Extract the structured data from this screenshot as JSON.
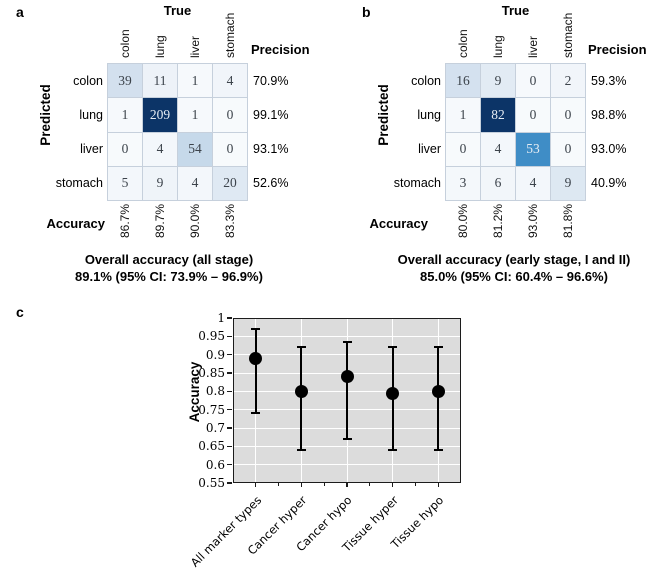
{
  "chart_data": [
    {
      "type": "heatmap",
      "panel_label": "a",
      "x_axis_title": "True",
      "y_axis_title": "Predicted",
      "categories": [
        "colon",
        "lung",
        "liver",
        "stomach"
      ],
      "matrix": [
        [
          39,
          11,
          1,
          4
        ],
        [
          1,
          209,
          1,
          0
        ],
        [
          0,
          4,
          54,
          0
        ],
        [
          5,
          9,
          4,
          20
        ]
      ],
      "precision_label": "Precision",
      "precision": [
        "70.9%",
        "99.1%",
        "93.1%",
        "52.6%"
      ],
      "accuracy_label": "Accuracy",
      "accuracy": [
        "86.7%",
        "89.7%",
        "90.0%",
        "83.3%"
      ],
      "caption_line1": "Overall accuracy (all stage)",
      "caption_line2": "89.1% (95% CI: 73.9% – 96.9%)",
      "colormap": "Blues",
      "cell_bg": [
        [
          "#d3e0ee",
          "#edf2f8",
          "#f6f9fc",
          "#f1f5fa"
        ],
        [
          "#f6f9fc",
          "#0c3467",
          "#f6f9fc",
          "#f7fafc"
        ],
        [
          "#f7fafc",
          "#f3f7fb",
          "#c6d9ea",
          "#f7fafc"
        ],
        [
          "#f3f7fb",
          "#eff4f9",
          "#f3f7fb",
          "#dfe9f3"
        ]
      ]
    },
    {
      "type": "heatmap",
      "panel_label": "b",
      "x_axis_title": "True",
      "y_axis_title": "Predicted",
      "categories": [
        "colon",
        "lung",
        "liver",
        "stomach"
      ],
      "matrix": [
        [
          16,
          9,
          0,
          2
        ],
        [
          1,
          82,
          0,
          0
        ],
        [
          0,
          4,
          53,
          0
        ],
        [
          3,
          6,
          4,
          9
        ]
      ],
      "precision_label": "Precision",
      "precision": [
        "59.3%",
        "98.8%",
        "93.0%",
        "40.9%"
      ],
      "accuracy_label": "Accuracy",
      "accuracy": [
        "80.0%",
        "81.2%",
        "93.0%",
        "81.8%"
      ],
      "caption_line1": "Overall accuracy (early stage, I and II)",
      "caption_line2": "85.0% (95% CI: 60.4% – 96.6%)",
      "colormap": "Blues",
      "cell_bg": [
        [
          "#d4e1ef",
          "#e2ebf4",
          "#f6f9fc",
          "#f1f5fa"
        ],
        [
          "#f6f9fc",
          "#0c3467",
          "#f7fafc",
          "#f7fafc"
        ],
        [
          "#f7fafc",
          "#f3f7fb",
          "#3f8dc6",
          "#f7fafc"
        ],
        [
          "#f4f8fb",
          "#f2f6fa",
          "#f3f7fb",
          "#dde8f2"
        ]
      ]
    },
    {
      "type": "scatter",
      "panel_label": "c",
      "ylabel": "Accuracy",
      "ylim": [
        0.55,
        1.0
      ],
      "ytick_step": 0.05,
      "ytick_labels": [
        "1",
        "0.95",
        "0.9",
        "0.85",
        "0.8",
        "0.75",
        "0.7",
        "0.65",
        "0.6",
        "0.55"
      ],
      "categories": [
        "All marker types",
        "Cancer hyper",
        "Cancer hypo",
        "Tissue hyper",
        "Tissue hypo"
      ],
      "values": [
        0.89,
        0.8,
        0.84,
        0.795,
        0.8
      ],
      "ci_low": [
        0.74,
        0.64,
        0.67,
        0.64,
        0.64
      ],
      "ci_high": [
        0.97,
        0.92,
        0.935,
        0.92,
        0.92
      ],
      "grid": true,
      "legend": "none",
      "plot_bg": "#dcdcdc",
      "grid_color": "#ffffff",
      "marker_color": "#000000"
    }
  ]
}
